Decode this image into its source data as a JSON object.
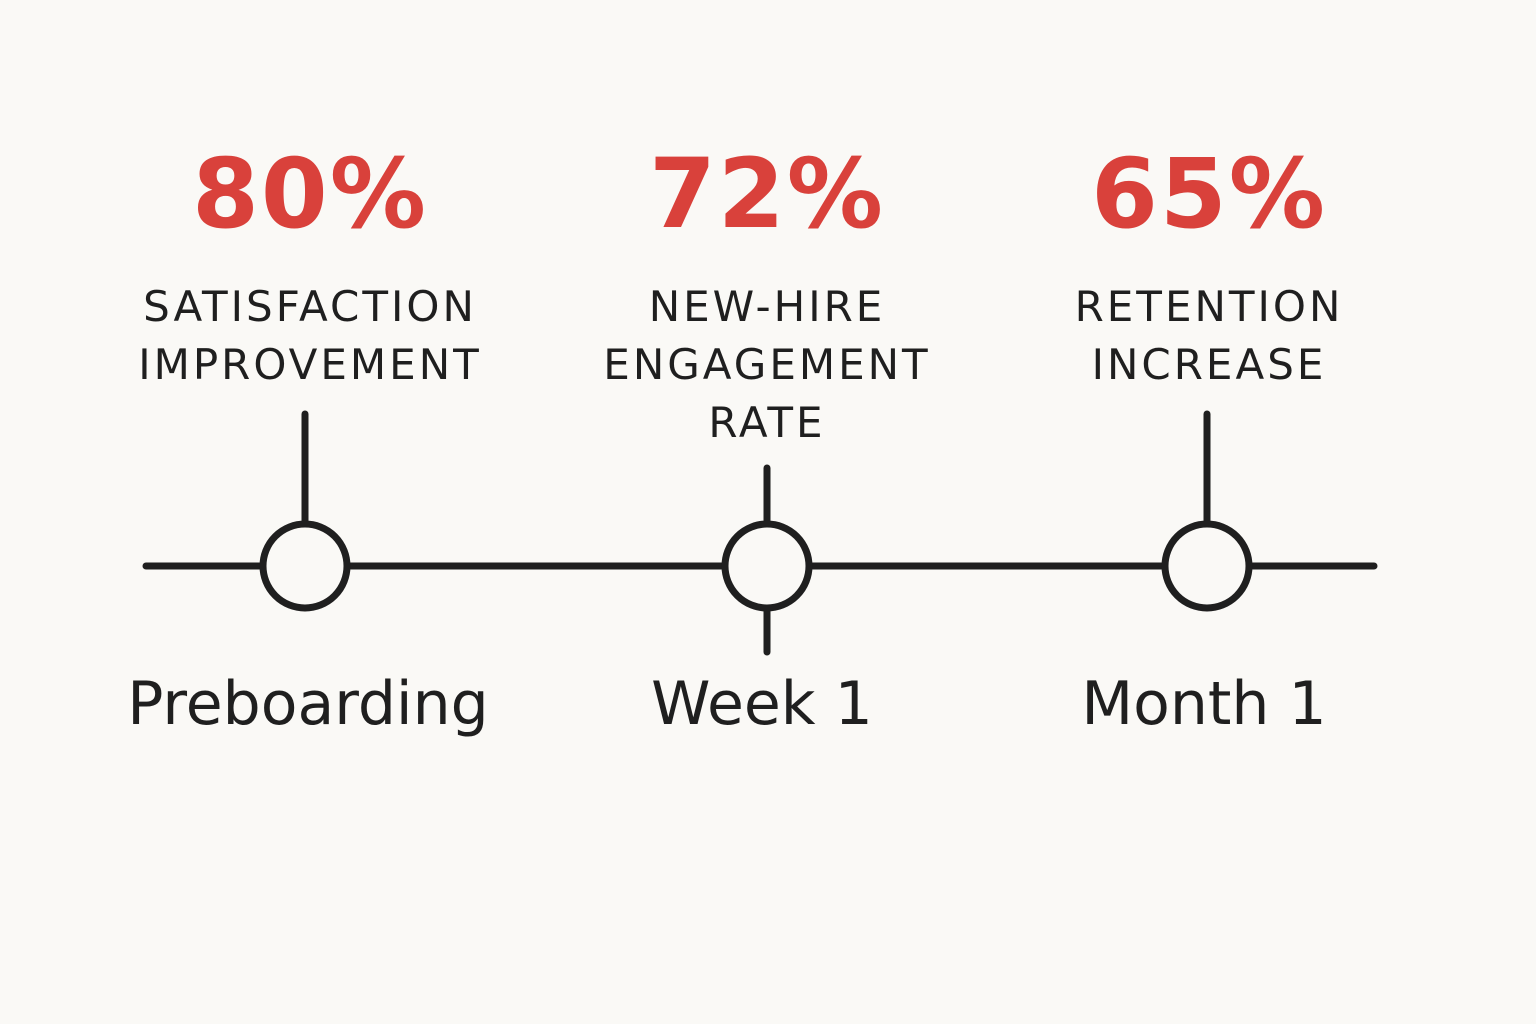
{
  "colors": {
    "background": "#faf9f6",
    "accent": "#d9413b",
    "ink": "#1f1f1f"
  },
  "milestones": [
    {
      "value": "80%",
      "label_lines": [
        "SATISFACTION",
        "IMPROVEMENT"
      ],
      "phase": "Preboarding"
    },
    {
      "value": "72%",
      "label_lines": [
        "NEW-HIRE",
        "ENGAGEMENT",
        "RATE"
      ],
      "phase": "Week 1"
    },
    {
      "value": "65%",
      "label_lines": [
        "RETENTION",
        "INCREASE"
      ],
      "phase": "Month 1"
    }
  ]
}
